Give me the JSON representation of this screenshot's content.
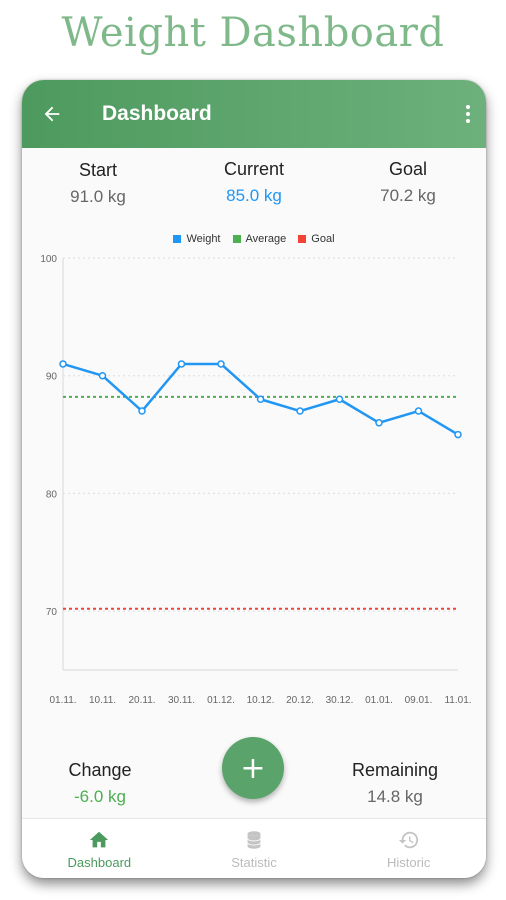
{
  "headline": "Weight Dashboard",
  "appbar": {
    "back_icon": "arrow-left-icon",
    "title": "Dashboard",
    "more_icon": "more-vertical-icon"
  },
  "stats": {
    "start": {
      "label": "Start",
      "value": "91.0 kg"
    },
    "current": {
      "label": "Current",
      "value": "85.0 kg"
    },
    "goal": {
      "label": "Goal",
      "value": "70.2 kg"
    },
    "change": {
      "label": "Change",
      "value": "-6.0 kg"
    },
    "remaining": {
      "label": "Remaining",
      "value": "14.8 kg"
    }
  },
  "fab": {
    "label": "+"
  },
  "bottom_nav": [
    {
      "label": "Dashboard",
      "icon": "home-icon",
      "active": true
    },
    {
      "label": "Statistic",
      "icon": "database-icon",
      "active": false
    },
    {
      "label": "Historic",
      "icon": "history-icon",
      "active": false
    }
  ],
  "colors": {
    "primary": "#5aa36a",
    "weight": "#2196f3",
    "average": "#4caf50",
    "goal": "#f44336"
  },
  "chart_data": {
    "type": "line",
    "categories": [
      "01.11.",
      "10.11.",
      "20.11.",
      "30.11.",
      "01.12.",
      "10.12.",
      "20.12.",
      "30.12.",
      "01.01.",
      "09.01.",
      "11.01."
    ],
    "series": [
      {
        "name": "Weight",
        "values": [
          91,
          90,
          87,
          91,
          91,
          88,
          87,
          88,
          86,
          87,
          85
        ]
      },
      {
        "name": "Average",
        "values": [
          88.2,
          88.2,
          88.2,
          88.2,
          88.2,
          88.2,
          88.2,
          88.2,
          88.2,
          88.2,
          88.2
        ]
      },
      {
        "name": "Goal",
        "values": [
          70.2,
          70.2,
          70.2,
          70.2,
          70.2,
          70.2,
          70.2,
          70.2,
          70.2,
          70.2,
          70.2
        ]
      }
    ],
    "y_ticks": [
      70,
      80,
      90,
      100
    ],
    "ylim": [
      65,
      100
    ],
    "grid": true,
    "legend": "top-center"
  }
}
